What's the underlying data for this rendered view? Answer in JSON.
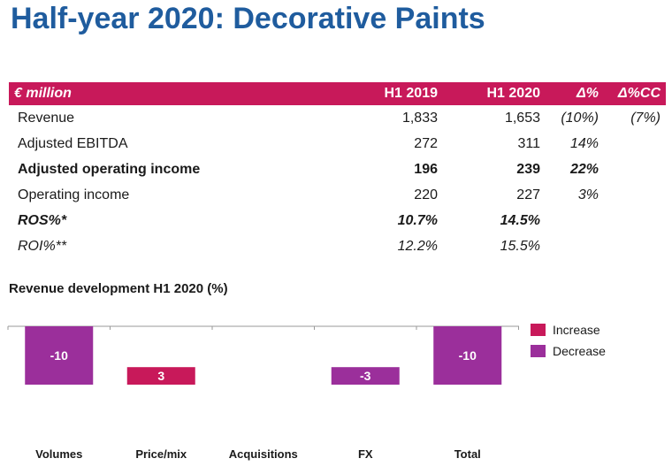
{
  "title": "Half-year 2020: Decorative Paints",
  "table": {
    "headers": [
      "€ million",
      "H1 2019",
      "H1 2020",
      "Δ%",
      "Δ%CC"
    ],
    "rows": [
      {
        "label": "Revenue",
        "h1_2019": "1,833",
        "h1_2020": "1,653",
        "delta": "(10%)",
        "delta_cc": "(7%)",
        "style": "normal"
      },
      {
        "label": "Adjusted EBITDA",
        "h1_2019": "272",
        "h1_2020": "311",
        "delta": "14%",
        "delta_cc": "",
        "style": "normal"
      },
      {
        "label": "Adjusted operating income",
        "h1_2019": "196",
        "h1_2020": "239",
        "delta": "22%",
        "delta_cc": "",
        "style": "bold"
      },
      {
        "label": "Operating income",
        "h1_2019": "220",
        "h1_2020": "227",
        "delta": "3%",
        "delta_cc": "",
        "style": "normal"
      },
      {
        "label": "ROS%*",
        "h1_2019": "10.7%",
        "h1_2020": "14.5%",
        "delta": "",
        "delta_cc": "",
        "style": "bolditalic"
      },
      {
        "label": "ROI%**",
        "h1_2019": "12.2%",
        "h1_2020": "15.5%",
        "delta": "",
        "delta_cc": "",
        "style": "italic"
      }
    ]
  },
  "chart_title": "Revenue development H1 2020 (%)",
  "chart_data": {
    "type": "bar",
    "title": "Revenue development H1 2020 (%)",
    "categories": [
      "Volumes",
      "Price/mix",
      "Acquisitions",
      "FX",
      "Total"
    ],
    "values": [
      -10,
      3,
      0,
      -3,
      -10
    ],
    "bar_labels": [
      "-10",
      "3",
      "",
      "-3",
      "-10"
    ],
    "series_type": [
      "decrease",
      "increase",
      "none",
      "decrease",
      "decrease"
    ],
    "legend": [
      {
        "name": "Increase",
        "color": "#c8195a"
      },
      {
        "name": "Decrease",
        "color": "#9b2f9b"
      }
    ],
    "legend_position": "top-right",
    "chart_kind": "waterfall",
    "grid": false
  },
  "colors": {
    "title": "#1f5c9e",
    "header_bg": "#c8195a",
    "increase": "#c8195a",
    "decrease": "#9b2f9b"
  }
}
